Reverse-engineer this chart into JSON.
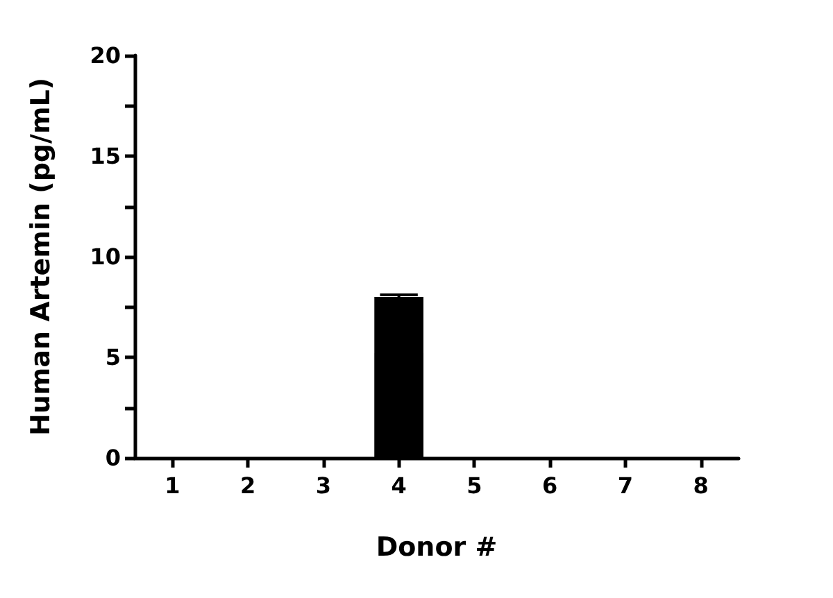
{
  "chart_data": {
    "type": "bar",
    "xlabel": "Donor #",
    "ylabel": "Human Artemin (pg/mL)",
    "categories": [
      "1",
      "2",
      "3",
      "4",
      "5",
      "6",
      "7",
      "8"
    ],
    "values": [
      0,
      0,
      0,
      8.0,
      0,
      0,
      0,
      0
    ],
    "errors": [
      null,
      null,
      null,
      0.1,
      null,
      null,
      null,
      null
    ],
    "color": "#000000",
    "ylim": [
      0,
      20
    ],
    "yticks": [
      0,
      {
        "value": 2.5,
        "label": null
      },
      5,
      {
        "value": 7.5,
        "label": null
      },
      10,
      {
        "value": 12.5,
        "label": null
      },
      15,
      {
        "value": 17.5,
        "label": null
      },
      20
    ],
    "grid": false
  }
}
